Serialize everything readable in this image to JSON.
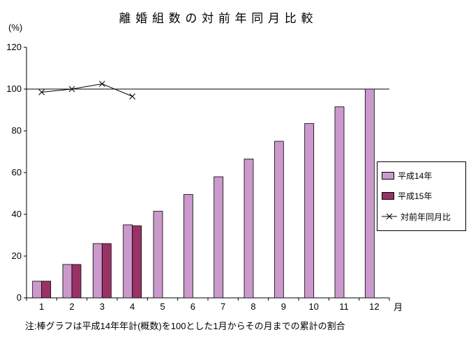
{
  "chart_data": {
    "type": "bar",
    "title": "離 婚 組 数 の 対 前 年 同 月 比 較",
    "ylabel": "(%)",
    "xlabel": "月",
    "note": "注:棒グラフは平成14年年計(概数)を100とした1月からその月までの累計の割合",
    "categories": [
      "1",
      "2",
      "3",
      "4",
      "5",
      "6",
      "7",
      "8",
      "9",
      "10",
      "11",
      "12"
    ],
    "ylim": [
      0,
      120
    ],
    "yticks": [
      0,
      20,
      40,
      60,
      80,
      100,
      120
    ],
    "reference_line": 100,
    "grid": false,
    "legend_position": "right",
    "series": [
      {
        "name": "平成14年",
        "type": "bar",
        "color": "#cc99cc",
        "values": [
          8,
          16,
          26,
          35,
          41.5,
          49.5,
          58,
          66.5,
          75,
          83.5,
          91.5,
          100
        ]
      },
      {
        "name": "平成15年",
        "type": "bar",
        "color": "#993366",
        "values": [
          8,
          16,
          26,
          34.5,
          null,
          null,
          null,
          null,
          null,
          null,
          null,
          null
        ]
      },
      {
        "name": "対前年同月比",
        "type": "line",
        "color": "#000000",
        "marker": "x",
        "values": [
          98.5,
          100,
          102.5,
          96.5,
          null,
          null,
          null,
          null,
          null,
          null,
          null,
          null
        ]
      }
    ]
  }
}
